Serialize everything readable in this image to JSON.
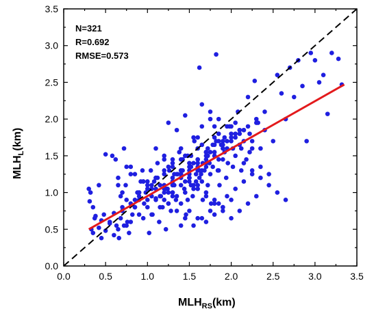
{
  "chart_data": {
    "type": "scatter",
    "title": "",
    "xlabel": {
      "main": "MLH",
      "sub": "RS",
      "unit": "(km)"
    },
    "ylabel": {
      "main": "MLH",
      "sub": "L",
      "unit": "(km)"
    },
    "xlim": [
      0.0,
      3.5
    ],
    "ylim": [
      0.0,
      3.5
    ],
    "x_ticks": [
      0.0,
      0.5,
      1.0,
      1.5,
      2.0,
      2.5,
      3.0,
      3.5
    ],
    "y_ticks": [
      0.0,
      0.5,
      1.0,
      1.5,
      2.0,
      2.5,
      3.0,
      3.5
    ],
    "x_tick_labels": [
      "0.0",
      "0.5",
      "1.0",
      "1.5",
      "2.0",
      "2.5",
      "3.0",
      "3.5"
    ],
    "y_tick_labels": [
      "0.0",
      "0.5",
      "1.0",
      "1.5",
      "2.0",
      "2.5",
      "3.0",
      "3.5"
    ],
    "grid": false,
    "stats": [
      "N=321",
      "R=0.692",
      "RMSE=0.573"
    ],
    "colors": {
      "points": "#1f1fe0",
      "fit": "#e31a1c",
      "one_to_one": "#000000",
      "axes": "#000000"
    },
    "one_to_one_line": {
      "x": [
        0.0,
        3.5
      ],
      "y": [
        0.0,
        3.5
      ],
      "style": "dashed"
    },
    "fit_line": {
      "x": [
        0.3,
        3.35
      ],
      "y": [
        0.5,
        2.47
      ],
      "style": "solid"
    },
    "series": [
      {
        "x": [
          0.3,
          0.31,
          0.32,
          0.33,
          0.35,
          0.37,
          0.42,
          0.45,
          0.48,
          0.5,
          0.55,
          0.58,
          0.6,
          0.62,
          0.63,
          0.65,
          0.66,
          0.68,
          0.7,
          0.72,
          0.74,
          0.76,
          0.78,
          0.8,
          0.8,
          0.82,
          0.85,
          0.88,
          0.9,
          0.92,
          0.94,
          0.96,
          0.98,
          1.0,
          1.02,
          1.04,
          1.06,
          1.08,
          1.1,
          1.12,
          1.14,
          1.16,
          1.18,
          1.2,
          1.22,
          1.24,
          1.26,
          1.28,
          1.3,
          1.32,
          1.34,
          1.36,
          1.38,
          1.4,
          1.42,
          1.44,
          1.46,
          1.48,
          1.5,
          1.52,
          1.54,
          1.56,
          1.58,
          1.6,
          1.62,
          1.64,
          1.66,
          1.68,
          1.7,
          1.72,
          1.74,
          1.76,
          1.78,
          1.8,
          1.82,
          1.84,
          1.86,
          1.88,
          1.9,
          1.92,
          1.94,
          1.96,
          1.98,
          2.0,
          2.02,
          2.05,
          2.08,
          2.1,
          2.12,
          2.15,
          2.18,
          2.2,
          2.22,
          2.25,
          2.28,
          2.3,
          2.35,
          2.4,
          2.45,
          2.5,
          2.55,
          2.6,
          2.65,
          2.7,
          2.75,
          2.8,
          2.85,
          2.9,
          2.95,
          3.0,
          3.05,
          3.1,
          3.15,
          3.2,
          3.28,
          3.32,
          0.7,
          0.9,
          1.1,
          1.3,
          1.5,
          1.7,
          1.9,
          2.1,
          1.0,
          1.2,
          1.4,
          1.6,
          1.8,
          2.0,
          1.25,
          1.45,
          1.65,
          1.85,
          0.85,
          1.05,
          1.15,
          1.35,
          1.55,
          1.75,
          1.95,
          2.15,
          0.95,
          1.15,
          1.35,
          1.55,
          1.75,
          1.25,
          1.45,
          1.65,
          1.85,
          2.05,
          0.75,
          1.05,
          1.25,
          1.45,
          1.65,
          1.85,
          1.4,
          1.6,
          1.8,
          1.55,
          1.62,
          1.7,
          1.48,
          1.52,
          1.58,
          1.66,
          1.72,
          1.78,
          1.12,
          1.22,
          1.32,
          1.42,
          1.52,
          1.62,
          1.72,
          1.82,
          1.92,
          2.02,
          2.12,
          2.22,
          2.32,
          0.65,
          0.68,
          0.72,
          0.6,
          0.55,
          0.5,
          0.45,
          0.42,
          0.38,
          0.35,
          1.2,
          1.3,
          1.4,
          1.5,
          1.6,
          1.7,
          1.8,
          1.9,
          2.0,
          2.1,
          2.2,
          2.3,
          2.4,
          1.1,
          1.2,
          1.3,
          1.4,
          1.5,
          1.6,
          1.7,
          1.8,
          1.9,
          2.0,
          2.1,
          0.9,
          1.0,
          1.1,
          1.2,
          1.3,
          1.4,
          1.5,
          1.6,
          1.7,
          1.8,
          0.8,
          0.9,
          1.0,
          1.1,
          1.2,
          1.3,
          1.4,
          1.5,
          1.6,
          1.7,
          1.25,
          1.35,
          1.45,
          1.55,
          1.65,
          1.75,
          1.85,
          1.95,
          2.05,
          2.15,
          2.25,
          2.35,
          2.45,
          2.55,
          2.65,
          0.75,
          0.85,
          0.95,
          1.05,
          1.15,
          1.25,
          1.35,
          1.45,
          1.55,
          1.65,
          1.75,
          1.85,
          1.95,
          2.05,
          2.15,
          2.25,
          2.35,
          1.65,
          1.75,
          1.85,
          1.95,
          2.05,
          2.15,
          2.25,
          1.3,
          1.4,
          1.5,
          1.6,
          1.7,
          1.8,
          1.9,
          2.0,
          1.2,
          1.3,
          1.4,
          1.5,
          1.6,
          1.7,
          1.8,
          1.9,
          2.0,
          2.1,
          2.2,
          2.3,
          1.1,
          1.2,
          1.3,
          1.4,
          1.5,
          1.6,
          1.7,
          1.8,
          1.9,
          0.65,
          0.7,
          0.75,
          0.8,
          0.85,
          0.9,
          0.95,
          1.0,
          1.05
        ],
        "y": [
          1.05,
          0.88,
          1.0,
          0.5,
          0.8,
          0.65,
          1.1,
          0.38,
          0.7,
          1.52,
          0.6,
          1.5,
          0.42,
          1.45,
          0.55,
          1.1,
          0.38,
          0.95,
          0.8,
          1.6,
          1.1,
          0.6,
          0.45,
          1.25,
          0.85,
          0.7,
          0.9,
          1.0,
          0.95,
          1.15,
          1.3,
          0.85,
          1.0,
          1.05,
          0.45,
          1.3,
          0.7,
          1.15,
          0.92,
          1.4,
          0.6,
          0.95,
          0.8,
          1.25,
          0.5,
          1.05,
          1.3,
          0.75,
          1.45,
          1.1,
          0.9,
          1.25,
          1.55,
          0.55,
          1.3,
          1.05,
          0.7,
          1.5,
          1.2,
          1.35,
          0.95,
          1.7,
          1.15,
          1.45,
          2.7,
          1.25,
          0.9,
          1.3,
          1.55,
          1.1,
          1.4,
          0.85,
          1.65,
          1.5,
          2.88,
          1.3,
          1.1,
          1.65,
          1.45,
          1.75,
          1.2,
          1.4,
          1.9,
          1.8,
          1.6,
          1.75,
          2.1,
          1.65,
          1.3,
          1.85,
          1.45,
          2.3,
          1.55,
          1.7,
          2.52,
          1.95,
          1.6,
          1.85,
          1.25,
          1.7,
          2.6,
          2.35,
          2.0,
          2.7,
          2.3,
          2.8,
          2.45,
          1.7,
          2.9,
          2.8,
          2.5,
          2.6,
          2.07,
          2.9,
          2.82,
          2.47,
          0.75,
          0.9,
          1.05,
          1.2,
          1.4,
          1.55,
          1.7,
          1.85,
          1.15,
          1.3,
          1.45,
          1.6,
          1.75,
          1.9,
          1.0,
          1.15,
          1.3,
          1.45,
          0.8,
          0.95,
          1.1,
          1.25,
          1.4,
          1.55,
          1.7,
          1.85,
          0.65,
          0.8,
          0.95,
          1.1,
          1.25,
          1.35,
          1.5,
          1.65,
          1.8,
          1.95,
          0.55,
          0.7,
          0.85,
          1.0,
          1.15,
          1.3,
          1.6,
          1.75,
          1.9,
          1.05,
          1.2,
          1.35,
          0.9,
          1.5,
          1.25,
          1.4,
          1.6,
          1.35,
          1.2,
          1.05,
          1.25,
          1.45,
          1.1,
          1.3,
          1.5,
          1.7,
          1.55,
          1.35,
          1.6,
          1.8,
          1.95,
          0.5,
          0.65,
          0.55,
          0.72,
          0.58,
          0.48,
          0.62,
          0.52,
          0.68,
          0.45,
          0.9,
          1.0,
          1.1,
          1.2,
          1.3,
          1.4,
          1.5,
          1.6,
          1.7,
          1.8,
          1.9,
          2.0,
          2.1,
          1.2,
          1.1,
          1.0,
          1.3,
          1.25,
          1.35,
          1.45,
          1.55,
          1.65,
          1.75,
          1.85,
          1.0,
          1.1,
          1.2,
          1.05,
          1.15,
          1.25,
          1.35,
          1.45,
          1.55,
          1.65,
          0.6,
          0.7,
          0.8,
          0.9,
          1.0,
          1.1,
          1.2,
          1.3,
          1.4,
          1.5,
          1.95,
          1.85,
          2.05,
          1.75,
          1.9,
          2.0,
          1.7,
          1.6,
          1.5,
          1.4,
          1.3,
          1.2,
          1.1,
          1.0,
          0.9,
          1.35,
          1.25,
          1.15,
          1.05,
          0.95,
          0.85,
          0.75,
          0.65,
          0.55,
          0.65,
          0.75,
          0.85,
          0.95,
          1.05,
          1.15,
          1.25,
          1.35,
          2.2,
          2.1,
          2.0,
          1.9,
          1.8,
          1.7,
          1.6,
          0.95,
          0.85,
          0.75,
          0.65,
          0.6,
          0.7,
          0.8,
          0.9,
          1.45,
          1.35,
          1.25,
          1.15,
          1.05,
          0.95,
          0.85,
          0.75,
          0.65,
          0.75,
          0.85,
          0.95,
          1.6,
          1.5,
          1.4,
          1.3,
          1.2,
          1.1,
          1.0,
          0.9,
          0.8,
          1.2,
          1.0,
          0.9,
          1.35,
          0.8,
          1.0,
          1.15,
          0.9,
          1.1
        ]
      }
    ]
  }
}
